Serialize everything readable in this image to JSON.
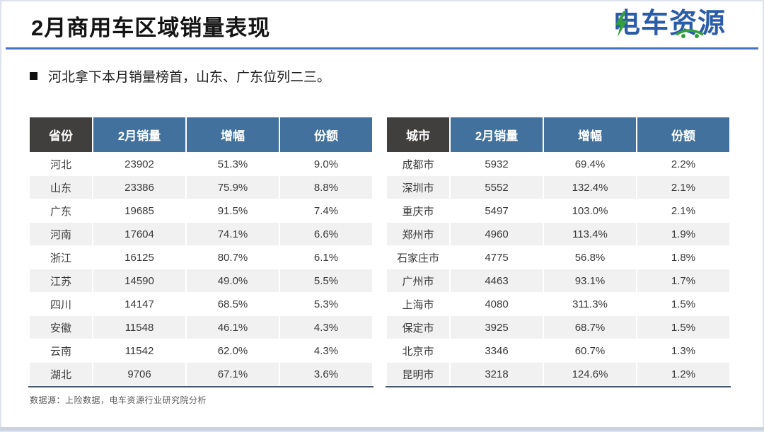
{
  "slide": {
    "title": "2月商用车区域销量表现",
    "logo_text": "电车资源",
    "bullet": "河北拿下本月销量榜首，山东、广东位列二三。",
    "footer": "数据源：上险数据，电车资源行业研究院分析"
  },
  "province_table": {
    "headers": [
      "省份",
      "2月销量",
      "增幅",
      "份额"
    ],
    "rows": [
      [
        "河北",
        "23902",
        "51.3%",
        "9.0%"
      ],
      [
        "山东",
        "23386",
        "75.9%",
        "8.8%"
      ],
      [
        "广东",
        "19685",
        "91.5%",
        "7.4%"
      ],
      [
        "河南",
        "17604",
        "74.1%",
        "6.6%"
      ],
      [
        "浙江",
        "16125",
        "80.7%",
        "6.1%"
      ],
      [
        "江苏",
        "14590",
        "49.0%",
        "5.5%"
      ],
      [
        "四川",
        "14147",
        "68.5%",
        "5.3%"
      ],
      [
        "安徽",
        "11548",
        "46.1%",
        "4.3%"
      ],
      [
        "云南",
        "11542",
        "62.0%",
        "4.3%"
      ],
      [
        "湖北",
        "9706",
        "67.1%",
        "3.6%"
      ]
    ]
  },
  "city_table": {
    "headers": [
      "城市",
      "2月销量",
      "增幅",
      "份额"
    ],
    "rows": [
      [
        "成都市",
        "5932",
        "69.4%",
        "2.2%"
      ],
      [
        "深圳市",
        "5552",
        "132.4%",
        "2.1%"
      ],
      [
        "重庆市",
        "5497",
        "103.0%",
        "2.1%"
      ],
      [
        "郑州市",
        "4960",
        "113.4%",
        "1.9%"
      ],
      [
        "石家庄市",
        "4775",
        "56.8%",
        "1.8%"
      ],
      [
        "广州市",
        "4463",
        "93.1%",
        "1.7%"
      ],
      [
        "上海市",
        "4080",
        "311.3%",
        "1.5%"
      ],
      [
        "保定市",
        "3925",
        "68.7%",
        "1.5%"
      ],
      [
        "北京市",
        "3346",
        "60.7%",
        "1.3%"
      ],
      [
        "昆明市",
        "3218",
        "124.6%",
        "1.2%"
      ]
    ]
  },
  "colors": {
    "accent_divider": "#4472C4",
    "header_blue": "#41719C",
    "header_dark": "#413E3E",
    "table_bottom_border": "#44546A",
    "row_stripe": "#F1F1F2",
    "bottom_bar": "#CCD3E0",
    "logo_blue": "#2B5CA8",
    "logo_green": "#33A03C"
  }
}
